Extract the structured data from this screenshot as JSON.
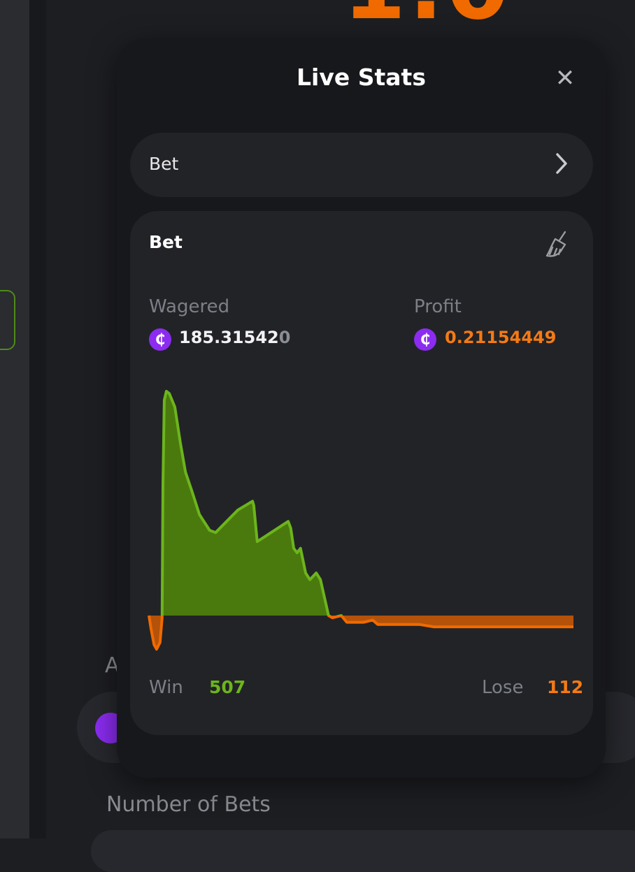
{
  "background": {
    "multiplier_partial": "1.0",
    "label_partial": "A",
    "number_of_bets_label": "Number of Bets"
  },
  "modal": {
    "title": "Live Stats",
    "close_icon": "close-icon",
    "selector": {
      "label": "Bet",
      "icon": "chevron-right-icon"
    },
    "card": {
      "title": "Bet",
      "clear_icon": "broom-icon",
      "wagered": {
        "label": "Wagered",
        "value_main": "185.31542",
        "value_dim": "0",
        "currency_icon": "coin-icon"
      },
      "profit": {
        "label": "Profit",
        "value": "0.21154449",
        "currency_icon": "coin-icon"
      },
      "win": {
        "label": "Win",
        "value": "507"
      },
      "lose": {
        "label": "Lose",
        "value": "112"
      }
    }
  },
  "colors": {
    "accent_orange": "#f47a14",
    "win_green": "#6cb51c",
    "coin_purple": "#8b2cf0"
  },
  "chart_data": {
    "type": "area",
    "title": "",
    "xlabel": "",
    "ylabel": "",
    "grid": false,
    "positive_color": "#6cb51c",
    "negative_color": "#f06a00",
    "x": [
      0,
      0.5,
      1.2,
      1.8,
      2.6,
      3.1,
      3.3,
      3.6,
      4.1,
      4.8,
      6.1,
      7.4,
      8.6,
      10.2,
      11.9,
      14.3,
      15.7,
      20.9,
      24.4,
      24.7,
      25.5,
      32.8,
      33.4,
      34.1,
      34.9,
      35.7,
      36.9,
      37.9,
      39.4,
      40.4,
      42.3,
      43.2,
      45.3,
      46.6,
      50.6,
      52.7,
      53.9,
      57.2,
      60.5,
      63.8,
      67.1,
      70.3,
      80.2,
      90.1,
      100
    ],
    "y": [
      0,
      -0.06,
      -0.13,
      -0.15,
      -0.12,
      -0.01,
      0.58,
      0.96,
      1.0,
      0.99,
      0.93,
      0.77,
      0.64,
      0.55,
      0.45,
      0.38,
      0.37,
      0.47,
      0.51,
      0.49,
      0.33,
      0.42,
      0.39,
      0.3,
      0.28,
      0.3,
      0.19,
      0.16,
      0.19,
      0.16,
      0.0,
      -0.01,
      0.0,
      -0.03,
      -0.03,
      -0.02,
      -0.04,
      -0.04,
      -0.04,
      -0.04,
      -0.05,
      -0.05,
      -0.05,
      -0.05,
      -0.05
    ]
  }
}
